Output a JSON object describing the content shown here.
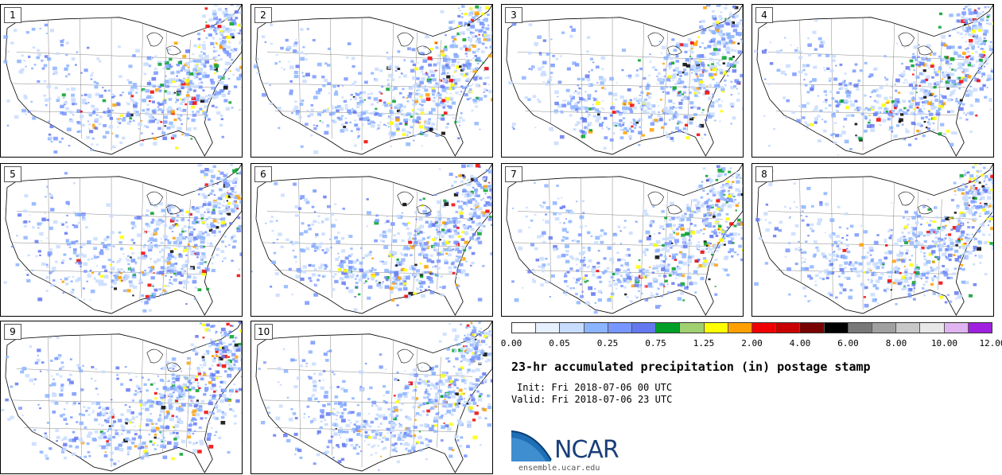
{
  "panels": [
    "1",
    "2",
    "3",
    "4",
    "5",
    "6",
    "7",
    "8",
    "9",
    "10"
  ],
  "legend": {
    "colors": [
      "#ffffff",
      "#e6f0ff",
      "#c8dcff",
      "#8cb4ff",
      "#7896ff",
      "#6478f0",
      "#00a028",
      "#a0d070",
      "#ffff00",
      "#ffa000",
      "#f00000",
      "#c80000",
      "#780000",
      "#000000",
      "#787878",
      "#a0a0a0",
      "#c8c8c8",
      "#e8e8e8",
      "#e0b4f0",
      "#a020e0"
    ],
    "ticks": [
      "0.00",
      "0.05",
      "0.25",
      "0.75",
      "1.25",
      "2.00",
      "4.00",
      "6.00",
      "8.00",
      "10.00",
      "12.00"
    ]
  },
  "title": "23-hr accumulated precipitation (in) postage stamp",
  "init": "Init: Fri 2018-07-06 00 UTC",
  "valid": "Valid: Fri 2018-07-06 23 UTC",
  "logo_text": "NCAR",
  "site": "ensemble.ucar.edu"
}
